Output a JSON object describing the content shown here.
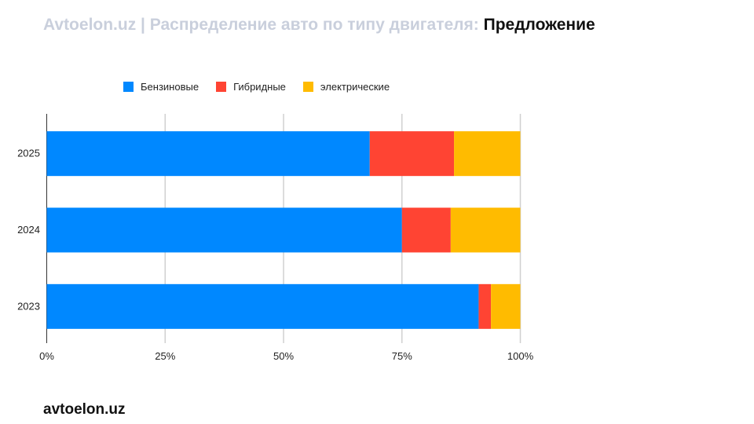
{
  "title": {
    "muted": "Avtoelon.uz | Распределение авто по типу двигателя:",
    "highlight": "Предложение"
  },
  "footer": {
    "brand": "avtoelon.uz"
  },
  "chart_data": {
    "type": "bar",
    "orientation": "horizontal",
    "stacked": "percent",
    "categories": [
      "2025",
      "2024",
      "2023"
    ],
    "series": [
      {
        "name": "Бензиновые",
        "color": "#0088ff",
        "values": [
          68.2,
          75.0,
          91.2
        ]
      },
      {
        "name": "Гибридные",
        "color": "#ff4433",
        "values": [
          17.8,
          10.3,
          2.6
        ]
      },
      {
        "name": "электрические",
        "color": "#ffbb00",
        "values": [
          14.0,
          14.7,
          6.2
        ]
      }
    ],
    "xlim": [
      0,
      100
    ],
    "xticks": [
      "0%",
      "25%",
      "50%",
      "75%",
      "100%"
    ],
    "grid": true,
    "legend": "top"
  }
}
